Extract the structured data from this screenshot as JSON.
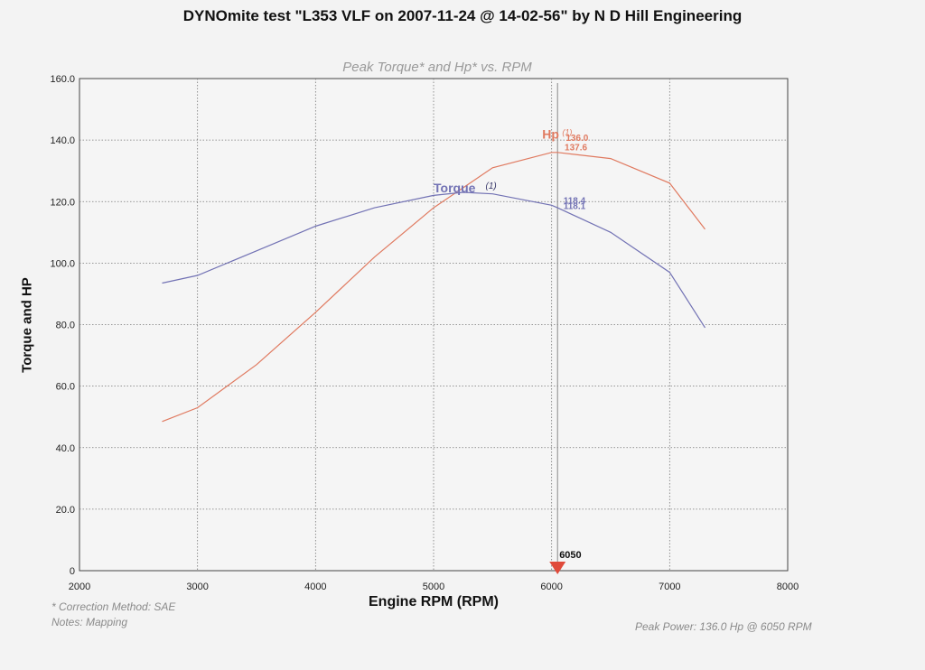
{
  "header": {
    "title": "DYNOmite test \"L353 VLF on 2007-11-24 @ 14-02-56\" by N D Hill Engineering"
  },
  "footer": {
    "correction": "* Correction Method: SAE",
    "notes": "Notes: Mapping",
    "peak_power": "Peak Power: 136.0 Hp @ 6050 RPM"
  },
  "chart_data": {
    "type": "line",
    "title": "Peak Torque* and Hp* vs. RPM",
    "xlabel": "Engine RPM (RPM)",
    "ylabel": "Torque and HP",
    "xlim": [
      2000,
      8000
    ],
    "ylim": [
      0,
      160
    ],
    "x_ticks": [
      "2000",
      "3000",
      "4000",
      "5000",
      "6000",
      "7000",
      "8000"
    ],
    "y_ticks": [
      "0",
      "20.0",
      "40.0",
      "60.0",
      "80.0",
      "100.0",
      "120.0",
      "140.0",
      "160.0"
    ],
    "grid": true,
    "marker": {
      "rpm": 6050,
      "label": "6050",
      "color": "#e04a3a"
    },
    "series": [
      {
        "name": "Hp",
        "legend_suffix": "(1)",
        "color": "#e07a60",
        "x": [
          2700,
          3000,
          3500,
          4000,
          4500,
          5000,
          5500,
          6000,
          6050,
          6500,
          7000,
          7300
        ],
        "values": [
          48.5,
          53,
          67,
          84,
          102,
          118,
          131,
          136,
          136,
          134,
          126,
          111
        ],
        "callouts": [
          "136.0",
          "137.6"
        ]
      },
      {
        "name": "Torque",
        "legend_suffix": "(1)",
        "color": "#7272b4",
        "x": [
          2700,
          3000,
          3500,
          4000,
          4500,
          5000,
          5250,
          5500,
          6000,
          6050,
          6500,
          7000,
          7300
        ],
        "values": [
          93.5,
          96,
          104,
          112,
          118,
          122,
          123,
          122.5,
          118.8,
          118,
          110,
          97,
          79
        ],
        "callouts": [
          "118.4",
          "118.1"
        ]
      }
    ]
  }
}
